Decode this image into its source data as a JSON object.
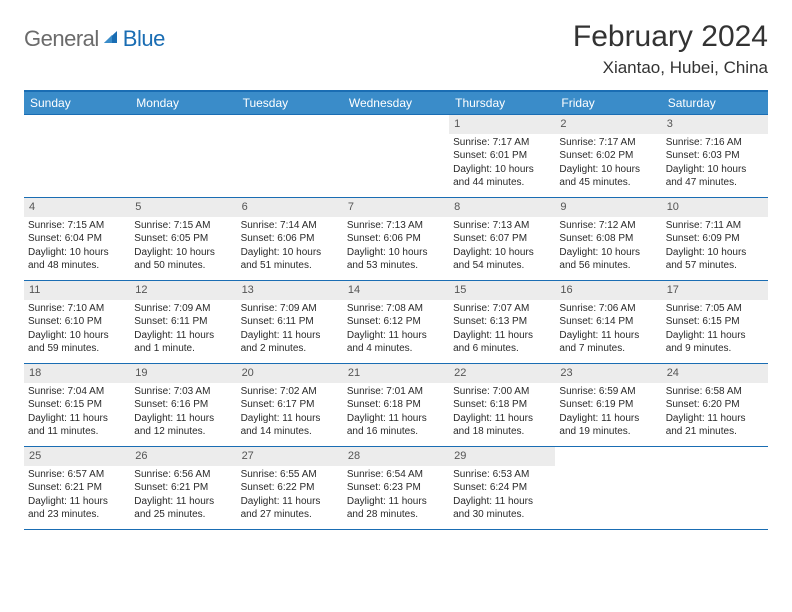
{
  "logo": {
    "part1": "General",
    "part2": "Blue"
  },
  "title": "February 2024",
  "location": "Xiantao, Hubei, China",
  "colors": {
    "header_bg": "#3a8cc9",
    "header_border": "#1a6db3",
    "row_border": "#1a6db3",
    "daynum_bg": "#ececec",
    "text": "#2a2a2a",
    "logo_gray": "#6b6b6b",
    "logo_blue": "#1a6db3"
  },
  "weekdays": [
    "Sunday",
    "Monday",
    "Tuesday",
    "Wednesday",
    "Thursday",
    "Friday",
    "Saturday"
  ],
  "weeks": [
    [
      null,
      null,
      null,
      null,
      {
        "n": "1",
        "sr": "Sunrise: 7:17 AM",
        "ss": "Sunset: 6:01 PM",
        "dl": "Daylight: 10 hours and 44 minutes."
      },
      {
        "n": "2",
        "sr": "Sunrise: 7:17 AM",
        "ss": "Sunset: 6:02 PM",
        "dl": "Daylight: 10 hours and 45 minutes."
      },
      {
        "n": "3",
        "sr": "Sunrise: 7:16 AM",
        "ss": "Sunset: 6:03 PM",
        "dl": "Daylight: 10 hours and 47 minutes."
      }
    ],
    [
      {
        "n": "4",
        "sr": "Sunrise: 7:15 AM",
        "ss": "Sunset: 6:04 PM",
        "dl": "Daylight: 10 hours and 48 minutes."
      },
      {
        "n": "5",
        "sr": "Sunrise: 7:15 AM",
        "ss": "Sunset: 6:05 PM",
        "dl": "Daylight: 10 hours and 50 minutes."
      },
      {
        "n": "6",
        "sr": "Sunrise: 7:14 AM",
        "ss": "Sunset: 6:06 PM",
        "dl": "Daylight: 10 hours and 51 minutes."
      },
      {
        "n": "7",
        "sr": "Sunrise: 7:13 AM",
        "ss": "Sunset: 6:06 PM",
        "dl": "Daylight: 10 hours and 53 minutes."
      },
      {
        "n": "8",
        "sr": "Sunrise: 7:13 AM",
        "ss": "Sunset: 6:07 PM",
        "dl": "Daylight: 10 hours and 54 minutes."
      },
      {
        "n": "9",
        "sr": "Sunrise: 7:12 AM",
        "ss": "Sunset: 6:08 PM",
        "dl": "Daylight: 10 hours and 56 minutes."
      },
      {
        "n": "10",
        "sr": "Sunrise: 7:11 AM",
        "ss": "Sunset: 6:09 PM",
        "dl": "Daylight: 10 hours and 57 minutes."
      }
    ],
    [
      {
        "n": "11",
        "sr": "Sunrise: 7:10 AM",
        "ss": "Sunset: 6:10 PM",
        "dl": "Daylight: 10 hours and 59 minutes."
      },
      {
        "n": "12",
        "sr": "Sunrise: 7:09 AM",
        "ss": "Sunset: 6:11 PM",
        "dl": "Daylight: 11 hours and 1 minute."
      },
      {
        "n": "13",
        "sr": "Sunrise: 7:09 AM",
        "ss": "Sunset: 6:11 PM",
        "dl": "Daylight: 11 hours and 2 minutes."
      },
      {
        "n": "14",
        "sr": "Sunrise: 7:08 AM",
        "ss": "Sunset: 6:12 PM",
        "dl": "Daylight: 11 hours and 4 minutes."
      },
      {
        "n": "15",
        "sr": "Sunrise: 7:07 AM",
        "ss": "Sunset: 6:13 PM",
        "dl": "Daylight: 11 hours and 6 minutes."
      },
      {
        "n": "16",
        "sr": "Sunrise: 7:06 AM",
        "ss": "Sunset: 6:14 PM",
        "dl": "Daylight: 11 hours and 7 minutes."
      },
      {
        "n": "17",
        "sr": "Sunrise: 7:05 AM",
        "ss": "Sunset: 6:15 PM",
        "dl": "Daylight: 11 hours and 9 minutes."
      }
    ],
    [
      {
        "n": "18",
        "sr": "Sunrise: 7:04 AM",
        "ss": "Sunset: 6:15 PM",
        "dl": "Daylight: 11 hours and 11 minutes."
      },
      {
        "n": "19",
        "sr": "Sunrise: 7:03 AM",
        "ss": "Sunset: 6:16 PM",
        "dl": "Daylight: 11 hours and 12 minutes."
      },
      {
        "n": "20",
        "sr": "Sunrise: 7:02 AM",
        "ss": "Sunset: 6:17 PM",
        "dl": "Daylight: 11 hours and 14 minutes."
      },
      {
        "n": "21",
        "sr": "Sunrise: 7:01 AM",
        "ss": "Sunset: 6:18 PM",
        "dl": "Daylight: 11 hours and 16 minutes."
      },
      {
        "n": "22",
        "sr": "Sunrise: 7:00 AM",
        "ss": "Sunset: 6:18 PM",
        "dl": "Daylight: 11 hours and 18 minutes."
      },
      {
        "n": "23",
        "sr": "Sunrise: 6:59 AM",
        "ss": "Sunset: 6:19 PM",
        "dl": "Daylight: 11 hours and 19 minutes."
      },
      {
        "n": "24",
        "sr": "Sunrise: 6:58 AM",
        "ss": "Sunset: 6:20 PM",
        "dl": "Daylight: 11 hours and 21 minutes."
      }
    ],
    [
      {
        "n": "25",
        "sr": "Sunrise: 6:57 AM",
        "ss": "Sunset: 6:21 PM",
        "dl": "Daylight: 11 hours and 23 minutes."
      },
      {
        "n": "26",
        "sr": "Sunrise: 6:56 AM",
        "ss": "Sunset: 6:21 PM",
        "dl": "Daylight: 11 hours and 25 minutes."
      },
      {
        "n": "27",
        "sr": "Sunrise: 6:55 AM",
        "ss": "Sunset: 6:22 PM",
        "dl": "Daylight: 11 hours and 27 minutes."
      },
      {
        "n": "28",
        "sr": "Sunrise: 6:54 AM",
        "ss": "Sunset: 6:23 PM",
        "dl": "Daylight: 11 hours and 28 minutes."
      },
      {
        "n": "29",
        "sr": "Sunrise: 6:53 AM",
        "ss": "Sunset: 6:24 PM",
        "dl": "Daylight: 11 hours and 30 minutes."
      },
      null,
      null
    ]
  ]
}
